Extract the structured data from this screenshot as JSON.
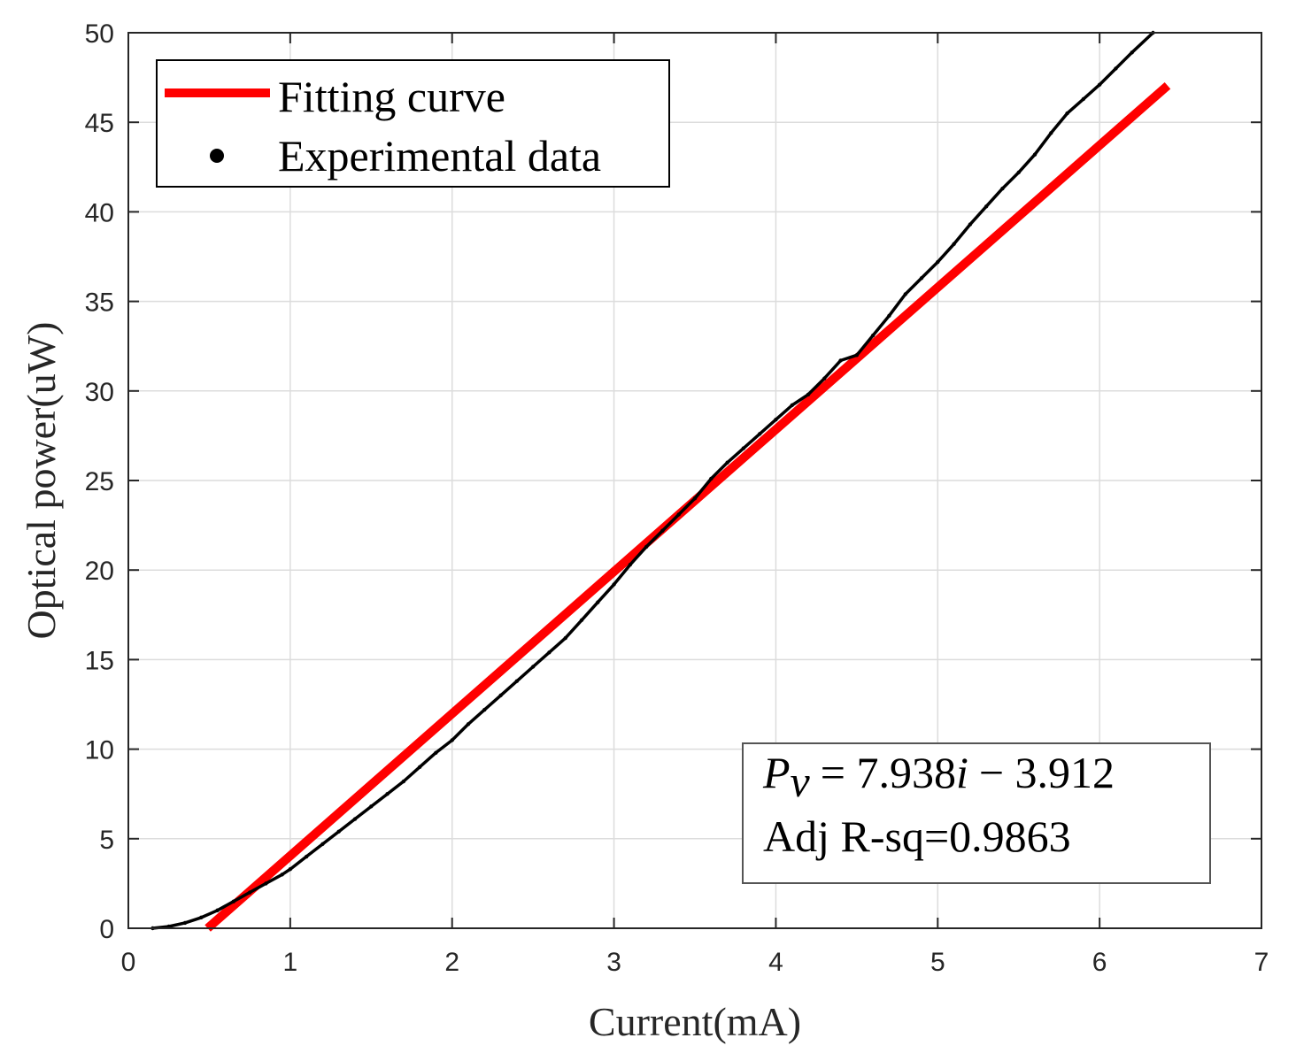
{
  "chart_data": {
    "type": "line",
    "xlabel": "Current(mA)",
    "ylabel": "Optical power(uW)",
    "xlim": [
      0,
      7
    ],
    "ylim": [
      0,
      50
    ],
    "xticks": [
      0,
      1,
      2,
      3,
      4,
      5,
      6,
      7
    ],
    "yticks": [
      0,
      5,
      10,
      15,
      20,
      25,
      30,
      35,
      40,
      45,
      50
    ],
    "grid": true,
    "legend_position": "top-left",
    "series": [
      {
        "name": "Fitting curve",
        "style": "line",
        "color": "#ff0000",
        "x": [
          0.49,
          6.42
        ],
        "y": [
          0.0,
          47.05
        ]
      },
      {
        "name": "Experimental data",
        "style": "dots",
        "color": "#000000",
        "x": [
          0.15,
          0.25,
          0.35,
          0.45,
          0.55,
          0.65,
          0.75,
          0.85,
          0.95,
          1.0,
          1.1,
          1.2,
          1.3,
          1.4,
          1.5,
          1.6,
          1.7,
          1.8,
          1.9,
          2.0,
          2.1,
          2.2,
          2.3,
          2.4,
          2.5,
          2.6,
          2.7,
          2.8,
          2.9,
          3.0,
          3.1,
          3.2,
          3.3,
          3.4,
          3.5,
          3.6,
          3.7,
          3.8,
          3.9,
          4.0,
          4.1,
          4.2,
          4.3,
          4.4,
          4.5,
          4.6,
          4.7,
          4.8,
          4.9,
          5.0,
          5.1,
          5.2,
          5.3,
          5.4,
          5.5,
          5.6,
          5.7,
          5.8,
          5.9,
          6.0,
          6.1,
          6.2,
          6.33
        ],
        "y": [
          0.0,
          0.1,
          0.3,
          0.6,
          1.0,
          1.5,
          2.0,
          2.5,
          3.0,
          3.3,
          4.0,
          4.7,
          5.4,
          6.1,
          6.8,
          7.5,
          8.2,
          9.0,
          9.8,
          10.5,
          11.4,
          12.2,
          13.0,
          13.8,
          14.6,
          15.4,
          16.2,
          17.2,
          18.2,
          19.2,
          20.3,
          21.3,
          22.2,
          23.1,
          24.0,
          25.1,
          26.0,
          26.8,
          27.6,
          28.4,
          29.2,
          29.8,
          30.7,
          31.7,
          32.0,
          33.1,
          34.2,
          35.4,
          36.3,
          37.2,
          38.2,
          39.3,
          40.3,
          41.3,
          42.2,
          43.2,
          44.4,
          45.5,
          46.3,
          47.1,
          48.0,
          48.9,
          50.0
        ]
      }
    ],
    "annotation": {
      "equation": "P_v = 7.938i − 3.912",
      "equation_parts": {
        "symbol": "P",
        "subscript": "v",
        "rhs": "= 7.938",
        "var": "i",
        "tail": "− 3.912"
      },
      "r_squared": "Adj R-sq=0.9863",
      "position": "bottom-right"
    }
  }
}
